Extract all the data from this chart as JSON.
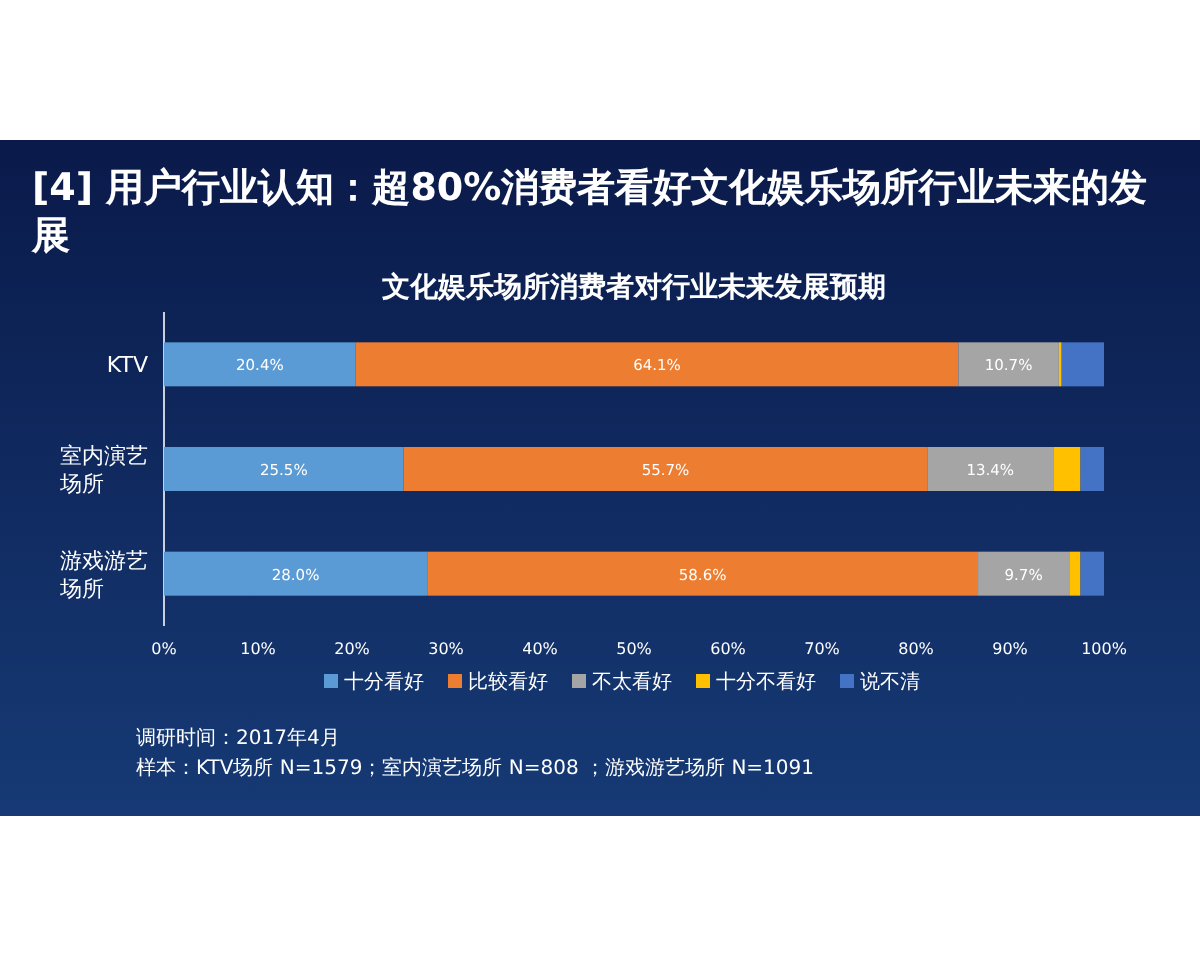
{
  "chart_data": {
    "type": "bar",
    "orientation": "horizontal",
    "stacked": true,
    "title": "[4] 用户行业认知：超80%消费者看好文化娱乐场所行业未来的发展",
    "subtitle": "文化娱乐场所消费者对行业未来发展预期",
    "categories": [
      "KTV",
      "室内演艺场所",
      "游戏游艺场所"
    ],
    "series": [
      {
        "name": "十分看好",
        "color": "#5b9bd5",
        "values": [
          20.4,
          25.5,
          28.0
        ],
        "value_labels": [
          "20.4%",
          "25.5%",
          "28.0%"
        ]
      },
      {
        "name": "比较看好",
        "color": "#ed7d31",
        "values": [
          64.1,
          55.7,
          58.6
        ],
        "value_labels": [
          "64.1%",
          "55.7%",
          "58.6%"
        ]
      },
      {
        "name": "不太看好",
        "color": "#a5a5a5",
        "values": [
          10.7,
          13.4,
          9.7
        ],
        "value_labels": [
          "10.7%",
          "13.4%",
          "9.7%"
        ]
      },
      {
        "name": "十分不看好",
        "color": "#ffc000",
        "values": [
          0.3,
          2.9,
          1.2
        ]
      },
      {
        "name": "说不清",
        "color": "#4472c4",
        "values": [
          4.5,
          2.5,
          2.5
        ]
      }
    ],
    "xlim": [
      0,
      100
    ],
    "xticks": [
      {
        "value": 0,
        "label": "0%"
      },
      {
        "value": 10,
        "label": "10%"
      },
      {
        "value": 20,
        "label": "20%"
      },
      {
        "value": 30,
        "label": "30%"
      },
      {
        "value": 40,
        "label": "40%"
      },
      {
        "value": 50,
        "label": "50%"
      },
      {
        "value": 60,
        "label": "60%"
      },
      {
        "value": 70,
        "label": "70%"
      },
      {
        "value": 80,
        "label": "80%"
      },
      {
        "value": 90,
        "label": "90%"
      },
      {
        "value": 100,
        "label": "100%"
      }
    ],
    "legend": "bottom",
    "annotations": [
      "调研时间：2017年4月",
      "样本：KTV场所 N=1579；室内演艺场所 N=808 ；游戏游艺场所 N=1091"
    ]
  }
}
